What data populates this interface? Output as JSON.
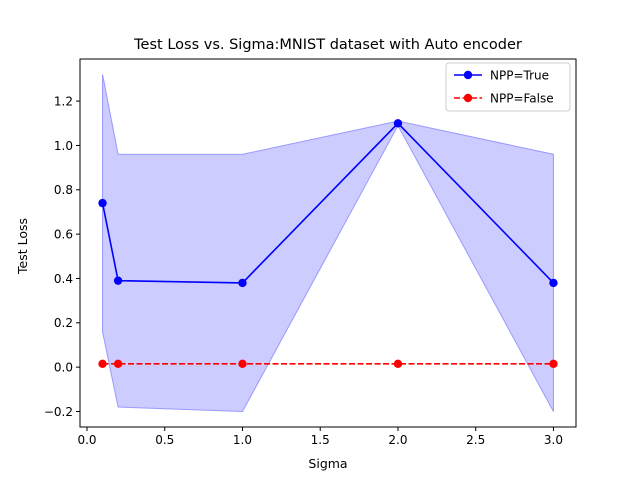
{
  "chart_data": {
    "type": "line",
    "title": "Test Loss vs. Sigma:MNIST dataset with Auto encoder",
    "xlabel": "Sigma",
    "ylabel": "Test Loss",
    "xlim": [
      -0.045,
      3.145
    ],
    "ylim": [
      -0.27,
      1.39
    ],
    "xticks": [
      0.0,
      0.5,
      1.0,
      1.5,
      2.0,
      2.5,
      3.0
    ],
    "xtick_labels": [
      "0.0",
      "0.5",
      "1.0",
      "1.5",
      "2.0",
      "2.5",
      "3.0"
    ],
    "yticks": [
      -0.2,
      0.0,
      0.2,
      0.4,
      0.6,
      0.8,
      1.0,
      1.2
    ],
    "ytick_labels": [
      "−0.2",
      "0.0",
      "0.2",
      "0.4",
      "0.6",
      "0.8",
      "1.0",
      "1.2"
    ],
    "grid": false,
    "legend_position": "top-right",
    "x": [
      0.1,
      0.2,
      1.0,
      2.0,
      3.0
    ],
    "series": [
      {
        "name": "NPP=True",
        "values": [
          0.74,
          0.39,
          0.38,
          1.1,
          0.38
        ],
        "band_upper": [
          1.32,
          0.96,
          0.96,
          1.11,
          0.96
        ],
        "band_lower": [
          0.16,
          -0.18,
          -0.2,
          1.09,
          -0.2
        ],
        "color": "#0000ff",
        "band_color": "#ccccff",
        "band_edge_color": "#9999ff",
        "line_style": "solid"
      },
      {
        "name": "NPP=False",
        "values": [
          0.015,
          0.015,
          0.015,
          0.015,
          0.015
        ],
        "color": "#ff0000",
        "line_style": "dashed"
      }
    ]
  }
}
